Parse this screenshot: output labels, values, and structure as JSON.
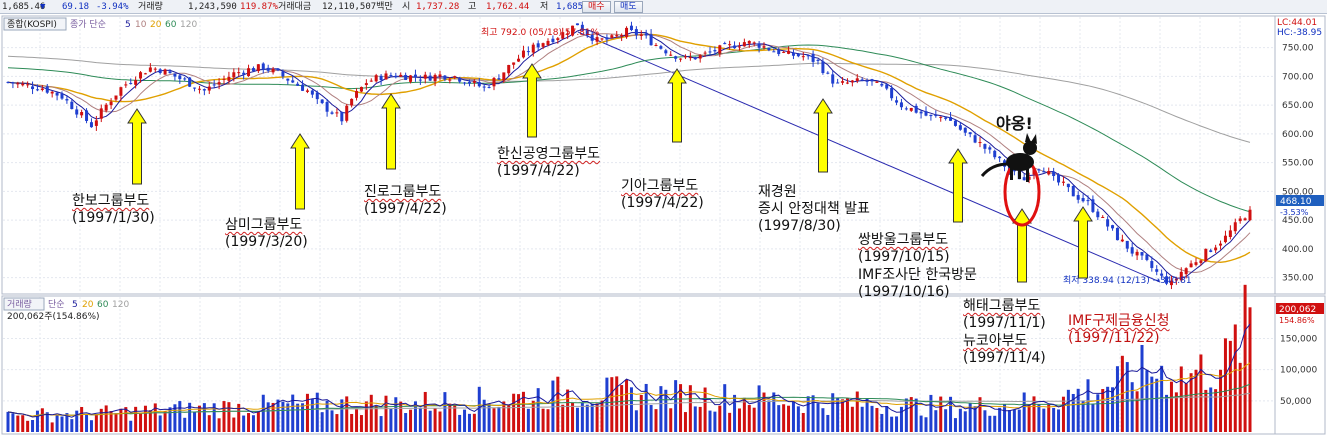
{
  "toolbar": {
    "index_value": "1,685.46",
    "index_arrow": "▼",
    "change": "69.18",
    "change_pct": "-3.94%",
    "volume_label": "거래량",
    "volume": "1,243,590",
    "volume_ratio": "119.87%",
    "amount_label": "거래대금",
    "amount": "12,110,507백만",
    "open_label": "시",
    "open": "1,737.28",
    "high_label": "고",
    "high": "1,762.44",
    "low_label": "저",
    "low": "1,685.37",
    "buy_label": "매수",
    "sell_label": "매도"
  },
  "price_panel": {
    "title": "종합(KOSPI)",
    "legend_prefix": "종가 단순",
    "ma_periods": [
      "5",
      "10",
      "20",
      "60",
      "120"
    ],
    "ma_colors": [
      "#1a1a9a",
      "#b08080",
      "#e0a000",
      "#2e8b57",
      "#a0a0a0"
    ],
    "lc_label": "LC:44.01",
    "hc_label": "HC:-38.95",
    "current_value": "468.10",
    "current_pct": "-3.53%",
    "high_annotation": "최고 792.0 (05/18) 57.81%",
    "low_annotation": "최저 338.94 (12/13) →340.81"
  },
  "volume_panel": {
    "title": "거래량",
    "legend_prefix": "단순",
    "ma_periods": [
      "5",
      "20",
      "60",
      "120"
    ],
    "ma_colors": [
      "#1a1a9a",
      "#e0a000",
      "#2e8b57",
      "#a0a0a0"
    ],
    "current_label": "200,062주(154.86%)",
    "current_value": "200,062",
    "current_pct": "154.86%"
  },
  "annotations": [
    {
      "name": "한보그룹부도",
      "date": "(1997/1/30)"
    },
    {
      "name": "삼미그룹부도",
      "date": "(1997/3/20)"
    },
    {
      "name": "진로그룹부도",
      "date": "(1997/4/22)"
    },
    {
      "name": "한신공영그룹부도",
      "date": "(1997/4/22)"
    },
    {
      "name": "기아그룹부도",
      "date": "(1997/4/22)"
    },
    {
      "name": "재경원\n증시 안정대책 발표",
      "date": "(1997/8/30)"
    },
    {
      "name": "쌍방울그룹부도",
      "date": "(1997/10/15)"
    },
    {
      "name": "IMF조사단 한국방문",
      "date": "(1997/10/16)"
    },
    {
      "name": "해태그룹부도",
      "date": "(1997/11/1)"
    },
    {
      "name": "뉴코아부도",
      "date": "(1997/11/4)"
    },
    {
      "name": "IMF구제금융신청",
      "date": "(1997/11/22)"
    }
  ],
  "cat_caption": "야옹!",
  "chart_data": [
    {
      "type": "candlestick",
      "title": "종합(KOSPI)",
      "period": "1997",
      "yticks": [
        350,
        400,
        450,
        500,
        550,
        600,
        650,
        700,
        750
      ],
      "ylim": [
        325,
        805
      ],
      "grid": true,
      "legend": "top-left",
      "annotated_extremes": {
        "high": 792.0,
        "low": 338.94
      },
      "last_close": 468.1,
      "waypoints": [
        [
          0,
          690
        ],
        [
          3,
          685
        ],
        [
          7,
          680
        ],
        [
          11,
          665
        ],
        [
          14,
          640
        ],
        [
          17,
          615
        ],
        [
          20,
          650
        ],
        [
          23,
          680
        ],
        [
          26,
          700
        ],
        [
          29,
          715
        ],
        [
          31,
          712
        ],
        [
          34,
          700
        ],
        [
          37,
          688
        ],
        [
          40,
          675
        ],
        [
          43,
          690
        ],
        [
          46,
          705
        ],
        [
          49,
          712
        ],
        [
          52,
          716
        ],
        [
          55,
          705
        ],
        [
          58,
          690
        ],
        [
          61,
          675
        ],
        [
          63,
          655
        ],
        [
          66,
          638
        ],
        [
          68,
          625
        ],
        [
          70,
          660
        ],
        [
          73,
          690
        ],
        [
          76,
          700
        ],
        [
          79,
          702
        ],
        [
          82,
          700
        ],
        [
          85,
          698
        ],
        [
          88,
          702
        ],
        [
          91,
          700
        ],
        [
          94,
          690
        ],
        [
          97,
          680
        ],
        [
          100,
          700
        ],
        [
          103,
          725
        ],
        [
          106,
          745
        ],
        [
          109,
          760
        ],
        [
          112,
          770
        ],
        [
          114,
          780
        ],
        [
          116,
          792
        ],
        [
          118,
          775
        ],
        [
          120,
          762
        ],
        [
          123,
          765
        ],
        [
          126,
          778
        ],
        [
          129,
          772
        ],
        [
          132,
          755
        ],
        [
          135,
          740
        ],
        [
          138,
          730
        ],
        [
          141,
          735
        ],
        [
          144,
          745
        ],
        [
          147,
          752
        ],
        [
          150,
          760
        ],
        [
          153,
          755
        ],
        [
          156,
          745
        ],
        [
          159,
          738
        ],
        [
          162,
          735
        ],
        [
          165,
          725
        ],
        [
          167,
          700
        ],
        [
          169,
          685
        ],
        [
          172,
          690
        ],
        [
          175,
          692
        ],
        [
          178,
          680
        ],
        [
          180,
          665
        ],
        [
          182,
          650
        ],
        [
          185,
          640
        ],
        [
          188,
          628
        ],
        [
          191,
          630
        ],
        [
          193,
          615
        ],
        [
          195,
          600
        ],
        [
          197,
          590
        ],
        [
          199,
          575
        ],
        [
          201,
          560
        ],
        [
          203,
          545
        ],
        [
          205,
          530
        ],
        [
          207,
          520
        ],
        [
          209,
          545
        ],
        [
          211,
          540
        ],
        [
          213,
          520
        ],
        [
          215,
          510
        ],
        [
          217,
          495
        ],
        [
          220,
          480
        ],
        [
          223,
          450
        ],
        [
          226,
          420
        ],
        [
          229,
          395
        ],
        [
          232,
          375
        ],
        [
          235,
          350
        ],
        [
          237,
          339
        ],
        [
          239,
          360
        ],
        [
          242,
          380
        ],
        [
          245,
          400
        ],
        [
          248,
          420
        ],
        [
          251,
          450
        ],
        [
          253,
          468
        ]
      ]
    },
    {
      "type": "bar",
      "title": "거래량",
      "yticks": [
        50000,
        100000,
        150000
      ],
      "ylim": [
        0,
        215000
      ],
      "last_value": 200062,
      "waypoints": [
        [
          0,
          26000
        ],
        [
          20,
          30000
        ],
        [
          40,
          38000
        ],
        [
          60,
          44000
        ],
        [
          80,
          45000
        ],
        [
          100,
          52000
        ],
        [
          115,
          65000
        ],
        [
          130,
          60000
        ],
        [
          150,
          55000
        ],
        [
          170,
          47000
        ],
        [
          185,
          42000
        ],
        [
          195,
          40000
        ],
        [
          210,
          48000
        ],
        [
          222,
          70000
        ],
        [
          232,
          100000
        ],
        [
          240,
          90000
        ],
        [
          248,
          110000
        ],
        [
          252,
          165000
        ],
        [
          253,
          200062
        ]
      ]
    }
  ]
}
